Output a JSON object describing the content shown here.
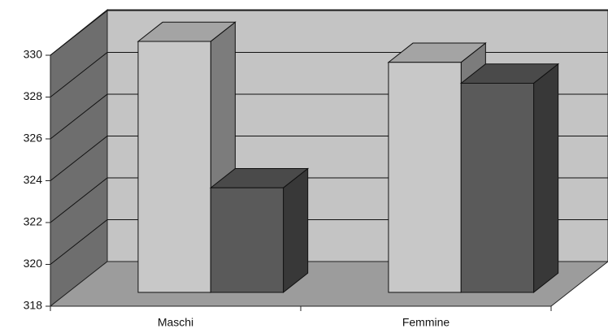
{
  "chart_data": {
    "type": "bar3d",
    "categories": [
      "Maschi",
      "Femmine"
    ],
    "series": [
      {
        "color": "#c8c8c8",
        "values": [
          330,
          329
        ]
      },
      {
        "color": "#5a5a5a",
        "values": [
          323,
          328
        ]
      }
    ],
    "ylim": [
      318,
      330
    ],
    "yticks": [
      318,
      320,
      322,
      324,
      326,
      328,
      330
    ],
    "grid": true
  }
}
